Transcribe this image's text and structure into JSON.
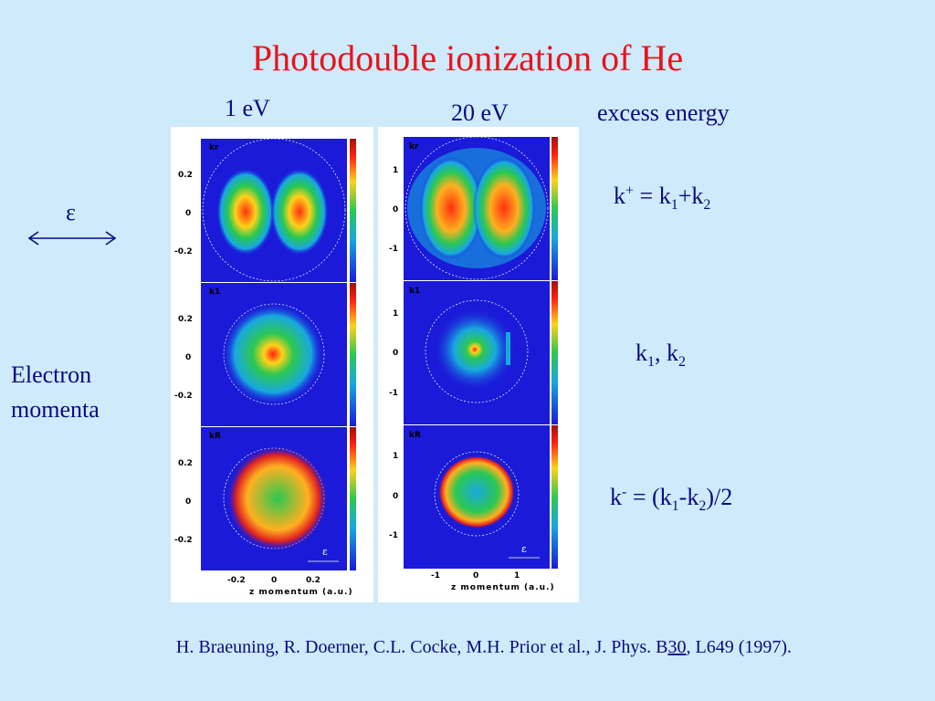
{
  "title": "Photodouble ionization of He",
  "energy_left": "1 eV",
  "energy_right": "20 eV",
  "excess_label": "excess energy",
  "epsilon": "ε",
  "side_label_line1": "Electron",
  "side_label_line2": "momenta",
  "eq1": {
    "k": "k",
    "sup": "+",
    "rest1": " = k",
    "s1": "1",
    "rest2": "+k",
    "s2": "2"
  },
  "eq2": {
    "k": "k",
    "s1": "1",
    "rest": ", k",
    "s2": "2"
  },
  "eq3": {
    "k": "k",
    "sup": "-",
    "rest1": " = (k",
    "s1": "1",
    "rest2": "-k",
    "s2": "2",
    "rest3": ")/2"
  },
  "left_panel": {
    "row_labels": [
      "kr",
      "k1",
      "kR"
    ],
    "y_ticks": [
      "0.2",
      "0",
      "-0.2"
    ],
    "x_ticks": [
      "-0.2",
      "0",
      "0.2"
    ],
    "xlabel": "z momentum (a.u.)"
  },
  "right_panel": {
    "row_labels": [
      "kr",
      "k1",
      "kR"
    ],
    "y_ticks": [
      "1",
      "0",
      "-1"
    ],
    "x_ticks": [
      "-1",
      "0",
      "1"
    ],
    "xlabel": "z momentum (a.u.)"
  },
  "reference": {
    "pre": "H. Braeuning, R. Doerner, C.L. Cocke, M.H. Prior et al.,  J. Phys. B",
    "vol": "30",
    "post": ", L649 (1997)."
  },
  "colors": {
    "title": "#e8141c",
    "text": "#0a0a80",
    "background": "#cfeafb",
    "plot_bg": "#1a1ad8"
  }
}
